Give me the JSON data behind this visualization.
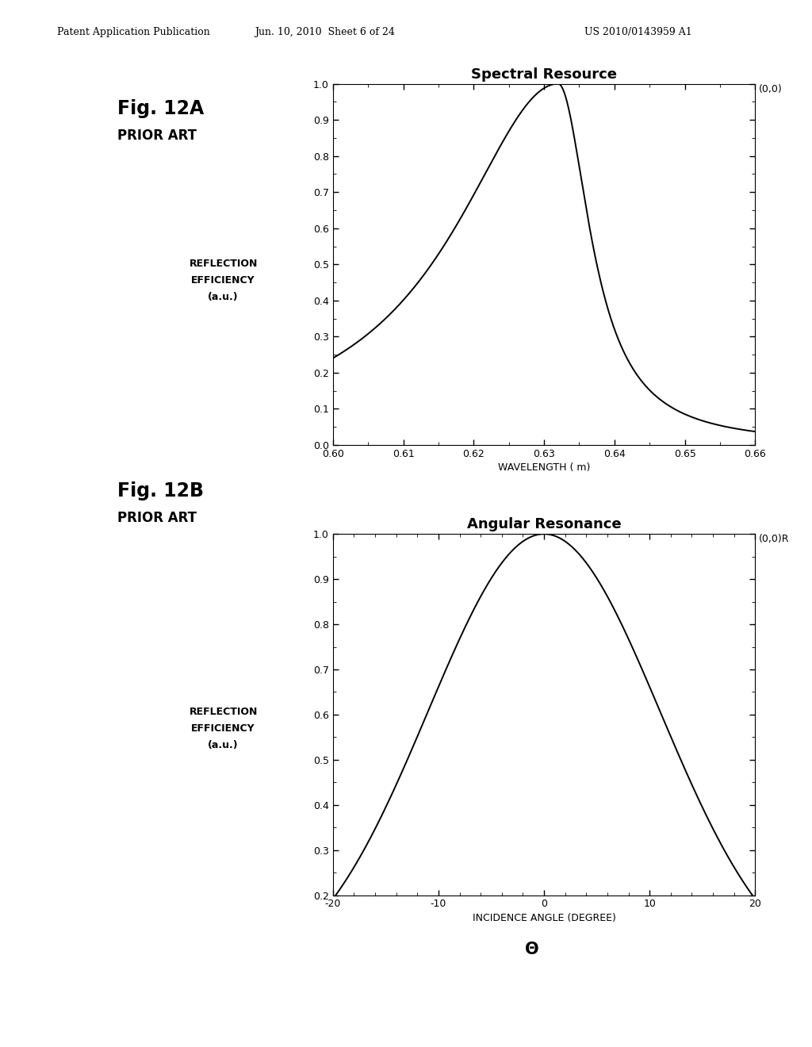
{
  "header_left": "Patent Application Publication",
  "header_mid": "Jun. 10, 2010  Sheet 6 of 24",
  "header_right": "US 2010/0143959 A1",
  "fig12a_label": "Fig. 12A",
  "fig12a_sublabel": "PRIOR ART",
  "fig12a_title": "Spectral Resource",
  "fig12a_ylabel_line1": "REFLECTION",
  "fig12a_ylabel_line2": "EFFICIENCY",
  "fig12a_ylabel_line3": "(a.u.)",
  "fig12a_xlabel": "WAVELENGTH ( m)",
  "fig12a_annotation": "(0,0)",
  "fig12a_xlim": [
    0.6,
    0.66
  ],
  "fig12a_ylim": [
    0.0,
    1.0
  ],
  "fig12a_xticks": [
    0.6,
    0.61,
    0.62,
    0.63,
    0.64,
    0.65,
    0.66
  ],
  "fig12a_yticks": [
    0.0,
    0.1,
    0.2,
    0.3,
    0.4,
    0.5,
    0.6,
    0.7,
    0.8,
    0.9,
    1.0
  ],
  "fig12b_label": "Fig. 12B",
  "fig12b_sublabel": "PRIOR ART",
  "fig12b_title": "Angular Resonance",
  "fig12b_ylabel_line1": "REFLECTION",
  "fig12b_ylabel_line2": "EFFICIENCY",
  "fig12b_ylabel_line3": "(a.u.)",
  "fig12b_xlabel": "INCIDENCE ANGLE (DEGREE)",
  "fig12b_xlabel2": "Θ",
  "fig12b_annotation": "(0,0)R",
  "fig12b_xlim": [
    -20,
    20
  ],
  "fig12b_ylim": [
    0.2,
    1.0
  ],
  "fig12b_xticks": [
    -20,
    -10,
    0,
    10,
    20
  ],
  "fig12b_yticks": [
    0.2,
    0.3,
    0.4,
    0.5,
    0.6,
    0.7,
    0.8,
    0.9,
    1.0
  ],
  "line_color": "#000000",
  "background_color": "#ffffff"
}
